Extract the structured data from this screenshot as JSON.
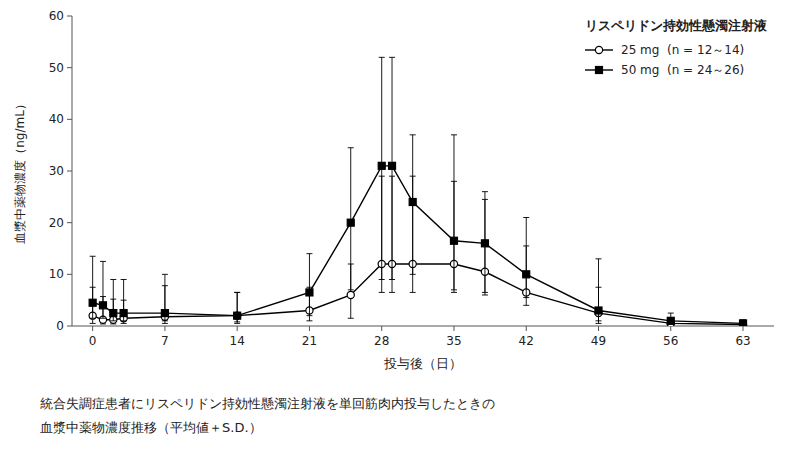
{
  "chart_data": {
    "type": "line",
    "xlabel": "投与後（日）",
    "ylabel": "血漿中薬物濃度（ng/mL）",
    "x": [
      0,
      1,
      2,
      3,
      7,
      14,
      21,
      25,
      28,
      29,
      31,
      35,
      38,
      42,
      49,
      56,
      63
    ],
    "xlim": [
      -2,
      66
    ],
    "xticks": [
      0,
      7,
      14,
      21,
      28,
      35,
      42,
      49,
      56,
      63
    ],
    "ylim": [
      0,
      60
    ],
    "yticks": [
      0,
      10,
      20,
      30,
      40,
      50,
      60
    ],
    "grid": false,
    "legend": "upper-right",
    "legend_title": "リスペリドン持効性懸濁注射液",
    "annotations": [
      "統合失調症患者にリスペリドン持効性懸濁注射液を単回筋肉内投与したときの",
      "血漿中薬物濃度推移（平均値＋S.D.）"
    ],
    "series": [
      {
        "name": "25 mg  (n = 12～14)",
        "color": "black",
        "marker": "open-circle",
        "line_style": "solid",
        "values": [
          2.0,
          1.2,
          1.2,
          1.5,
          1.8,
          2.0,
          3.0,
          6.0,
          12.0,
          12.0,
          12.0,
          12.0,
          10.5,
          6.5,
          2.5,
          0.5,
          0.3
        ],
        "error_low": [
          1.5,
          0.8,
          0.8,
          1.0,
          1.3,
          1.5,
          2.0,
          4.5,
          5.5,
          5.5,
          5.5,
          5.0,
          4.5,
          2.5,
          2.0,
          0.3,
          0.2
        ],
        "error_high": [
          5.5,
          4.5,
          4.0,
          3.5,
          6.0,
          4.5,
          4.5,
          6.0,
          17.0,
          17.0,
          17.0,
          16.0,
          14.0,
          9.0,
          5.0,
          0.8,
          0.5
        ]
      },
      {
        "name": "50 mg  (n = 24～26)",
        "color": "black",
        "marker": "filled-square",
        "line_style": "solid",
        "values": [
          4.5,
          4.0,
          2.5,
          2.5,
          2.5,
          2.0,
          6.5,
          20.0,
          31.0,
          31.0,
          24.0,
          16.5,
          16.0,
          10.0,
          3.0,
          1.0,
          0.5
        ],
        "error_low": [
          3.0,
          2.5,
          1.5,
          1.5,
          1.5,
          1.2,
          4.5,
          13.0,
          22.0,
          22.0,
          14.0,
          10.0,
          9.5,
          4.5,
          2.0,
          0.5,
          0.3
        ],
        "error_high": [
          9.0,
          8.5,
          6.5,
          6.5,
          7.5,
          4.5,
          7.5,
          14.5,
          21.0,
          21.0,
          13.0,
          20.5,
          10.0,
          11.0,
          10.0,
          1.5,
          0.7
        ]
      }
    ]
  }
}
